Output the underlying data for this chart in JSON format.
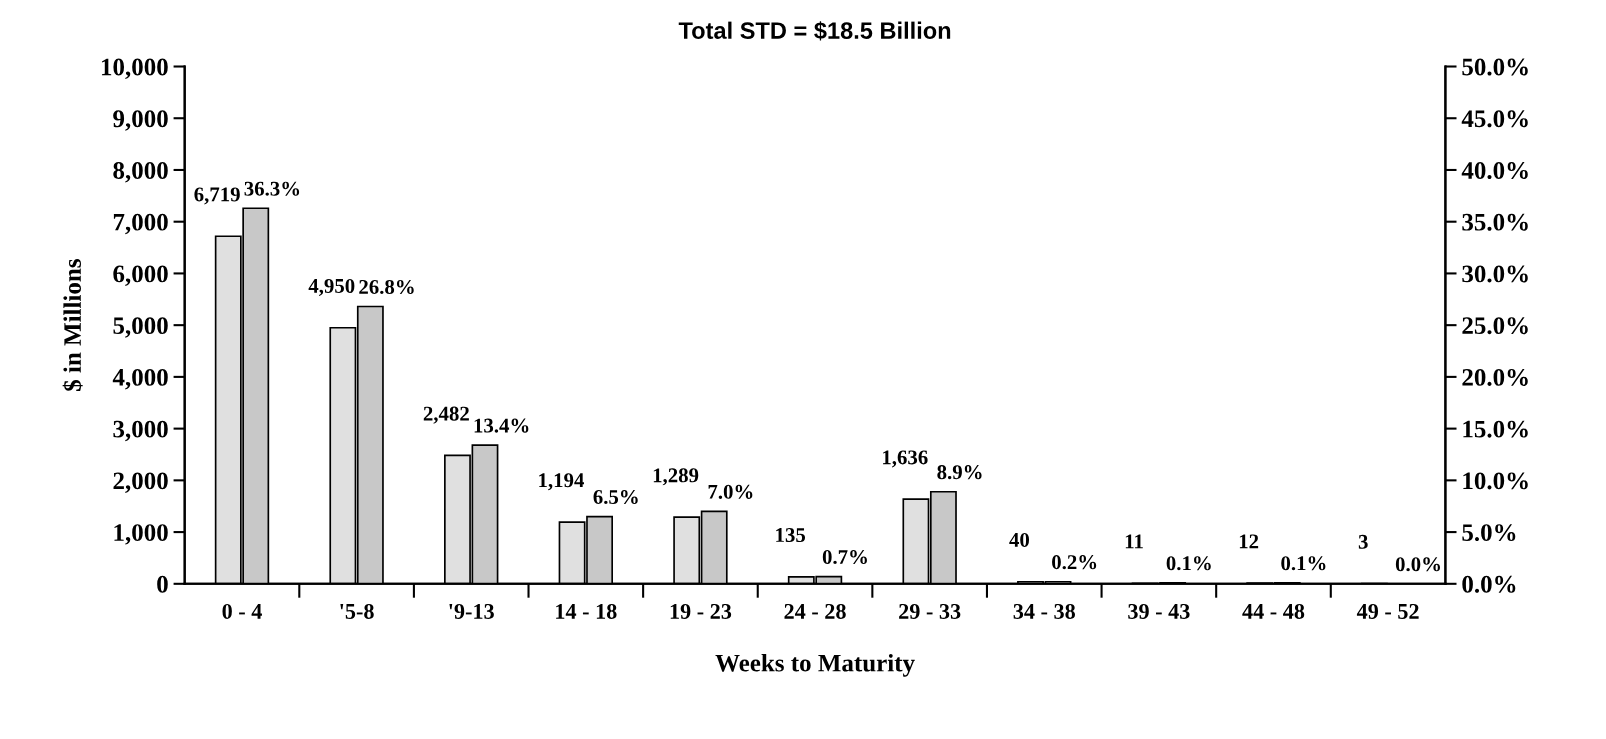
{
  "chart_data": {
    "type": "bar",
    "title": "Total STD = $18.5 Billion",
    "xlabel": "Weeks to Maturity",
    "ylabel": "$ in Millions",
    "categories": [
      "0 - 4",
      "'5-8",
      "'9-13",
      "14 - 18",
      "19 - 23",
      "24 - 28",
      "29 - 33",
      "34 - 38",
      "39 - 43",
      "44 - 48",
      "49 - 52"
    ],
    "series": [
      {
        "color": "#e0e0e0",
        "values": [
          6719,
          4950,
          2482,
          1194,
          1289,
          135,
          1636,
          40,
          11,
          12,
          3
        ],
        "value_labels": [
          "6,719",
          "4,950",
          "2,482",
          "1,194",
          "1,289",
          "135",
          "1,636",
          "40",
          "11",
          "12",
          "3"
        ]
      },
      {
        "color": "#c8c8c8",
        "axis": "y2",
        "values": [
          36.3,
          26.8,
          13.4,
          6.5,
          7.0,
          0.7,
          8.9,
          0.2,
          0.1,
          0.1,
          0.0
        ],
        "value_labels": [
          "36.3%",
          "26.8%",
          "13.4%",
          "6.5%",
          "7.0%",
          "0.7%",
          "8.9%",
          "0.2%",
          "0.1%",
          "0.1%",
          "0.0%"
        ]
      }
    ],
    "ylim": [
      0,
      10000
    ],
    "yticks": [
      0,
      {
        "value": 1000,
        "label": "1,000"
      },
      {
        "value": 2000,
        "label": "2,000"
      },
      {
        "value": 3000,
        "label": "3,000"
      },
      {
        "value": 4000,
        "label": "4,000"
      },
      {
        "value": 5000,
        "label": "5,000"
      },
      {
        "value": 6000,
        "label": "6,000"
      },
      {
        "value": 7000,
        "label": "7,000"
      },
      {
        "value": 8000,
        "label": "8,000"
      },
      {
        "value": 9000,
        "label": "9,000"
      },
      {
        "value": 10000,
        "label": "10,000"
      }
    ],
    "y2lim": [
      0,
      50
    ],
    "y2ticks": [
      {
        "value": 0,
        "label": "0.0%"
      },
      {
        "value": 5,
        "label": "5.0%"
      },
      {
        "value": 10,
        "label": "10.0%"
      },
      {
        "value": 15,
        "label": "15.0%"
      },
      {
        "value": 20,
        "label": "20.0%"
      },
      {
        "value": 25,
        "label": "25.0%"
      },
      {
        "value": 30,
        "label": "30.0%"
      },
      {
        "value": 35,
        "label": "35.0%"
      },
      {
        "value": 40,
        "label": "40.0%"
      },
      {
        "value": 45,
        "label": "45.0%"
      },
      {
        "value": 50,
        "label": "50.0%"
      }
    ],
    "grid": false
  }
}
